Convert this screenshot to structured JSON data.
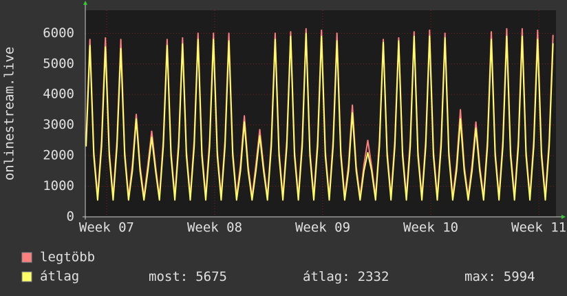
{
  "chart_data": {
    "type": "line",
    "ylabel": "onlinestream.live",
    "x": [
      -1.33,
      -1.08,
      -0.83,
      -0.58,
      -0.33,
      -0.08,
      0.17,
      0.42,
      0.67,
      0.92,
      1.17,
      1.42,
      1.67,
      1.92,
      2.17,
      2.42,
      2.67,
      2.92,
      3.17,
      3.42,
      3.67,
      3.92,
      4.17,
      4.42,
      4.67,
      4.92,
      5.17,
      5.42,
      5.67,
      5.92,
      6.17,
      6.42,
      6.67,
      6.92,
      7.17,
      7.42,
      7.67,
      7.92,
      8.17,
      8.42,
      8.67,
      8.92,
      9.17,
      9.42,
      9.67,
      9.92,
      10.17,
      10.42,
      10.67,
      10.92,
      11.17,
      11.42,
      11.67,
      11.92,
      12.17,
      12.42,
      12.67,
      12.92,
      13.17,
      13.42,
      13.67,
      13.92,
      14.17,
      14.42,
      14.67,
      14.92,
      15.17,
      15.42,
      15.67,
      15.92,
      16.17,
      16.42,
      16.67,
      16.92,
      17.17,
      17.42,
      17.67,
      17.92,
      18.17,
      18.42,
      18.67,
      18.92,
      19.17,
      19.42,
      19.67,
      19.92,
      20.17,
      20.42,
      20.67,
      20.92,
      21.17,
      21.42,
      21.67,
      21.92,
      22.17,
      22.42,
      22.67,
      22.92,
      23.17,
      23.42,
      23.67,
      23.92,
      24.17,
      24.42,
      24.67,
      24.92,
      25.17,
      25.42,
      25.67,
      25.92,
      26.17,
      26.42,
      26.67,
      26.92,
      27.17,
      27.42,
      27.67,
      27.92,
      28.17,
      28.42,
      28.67,
      28.92
    ],
    "series": [
      {
        "name": "legtöbb",
        "color": "#ff7f7f",
        "values": [
          2500,
          5800,
          2150,
          650,
          2500,
          5850,
          2150,
          650,
          2500,
          5800,
          2150,
          650,
          1700,
          3350,
          1650,
          650,
          1700,
          2800,
          1650,
          650,
          2500,
          5800,
          2150,
          650,
          2500,
          5850,
          2150,
          650,
          2500,
          6000,
          2150,
          650,
          2500,
          6000,
          2150,
          650,
          2500,
          6000,
          2150,
          650,
          1700,
          3300,
          1650,
          650,
          1700,
          2850,
          1650,
          650,
          2500,
          6000,
          2150,
          650,
          2500,
          6050,
          2150,
          650,
          2500,
          6150,
          2150,
          650,
          2500,
          6100,
          2150,
          650,
          2500,
          6000,
          2150,
          650,
          1700,
          3650,
          1650,
          650,
          1700,
          2500,
          1650,
          650,
          2500,
          5800,
          2150,
          650,
          2500,
          5850,
          2150,
          650,
          2500,
          6050,
          2150,
          650,
          2500,
          6100,
          2150,
          650,
          2500,
          6000,
          2150,
          650,
          1700,
          3500,
          1650,
          650,
          1700,
          3100,
          1650,
          650,
          2500,
          6050,
          2150,
          650,
          2500,
          6150,
          2150,
          650,
          2500,
          6150,
          2150,
          650,
          2500,
          6100,
          2150,
          650,
          2500,
          5950
        ]
      },
      {
        "name": "átlag",
        "color": "#ffff66",
        "values": [
          2300,
          5600,
          2000,
          550,
          2300,
          5550,
          2000,
          550,
          2300,
          5500,
          2000,
          550,
          1500,
          3200,
          1500,
          550,
          1500,
          2600,
          1500,
          550,
          2300,
          5600,
          2000,
          550,
          2300,
          5650,
          2000,
          550,
          2300,
          5800,
          2000,
          550,
          2300,
          5800,
          2000,
          550,
          2300,
          5750,
          2000,
          550,
          1500,
          3100,
          1500,
          550,
          1500,
          2650,
          1500,
          550,
          2300,
          5800,
          2000,
          550,
          2300,
          5900,
          2000,
          550,
          2300,
          5994,
          2000,
          550,
          2300,
          5900,
          2000,
          550,
          2300,
          5750,
          2000,
          550,
          1500,
          3400,
          1500,
          550,
          1500,
          2100,
          1500,
          550,
          2300,
          5700,
          2000,
          550,
          2300,
          5750,
          2000,
          550,
          2300,
          5900,
          2000,
          550,
          2300,
          5900,
          2000,
          550,
          2300,
          5850,
          2000,
          550,
          1500,
          3200,
          1500,
          550,
          1500,
          2900,
          1500,
          550,
          2300,
          5800,
          2000,
          550,
          2300,
          5900,
          2000,
          550,
          2300,
          5900,
          2000,
          550,
          2300,
          5800,
          2000,
          550,
          2300,
          5675
        ]
      }
    ],
    "xlim": [
      -1.38,
      29.11
    ],
    "xticks": [
      {
        "value": 0,
        "label": "Week 07"
      },
      {
        "value": 7,
        "label": "Week 08"
      },
      {
        "value": 14,
        "label": "Week 09"
      },
      {
        "value": 21,
        "label": "Week 10"
      },
      {
        "value": 28,
        "label": "Week 11"
      }
    ],
    "ylim": [
      0,
      6750
    ],
    "yticks": [
      0,
      1000,
      2000,
      3000,
      4000,
      5000,
      6000
    ],
    "grid": true,
    "stats": [
      {
        "label": "most:",
        "value": 5675
      },
      {
        "label": "átlag:",
        "value": 2332
      },
      {
        "label": "max:",
        "value": 5994
      }
    ]
  }
}
